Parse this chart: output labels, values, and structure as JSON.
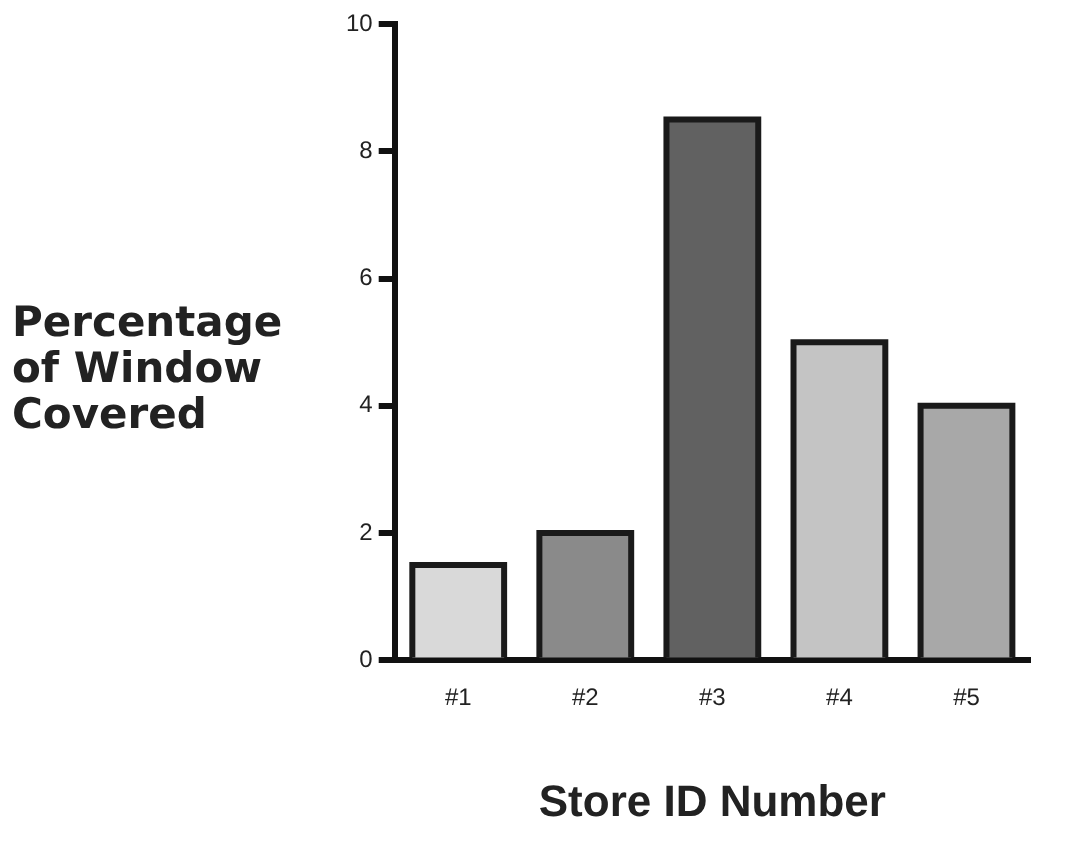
{
  "chart_data": {
    "type": "bar",
    "categories": [
      "#1",
      "#2",
      "#3",
      "#4",
      "#5"
    ],
    "values": [
      1.5,
      2.0,
      8.5,
      5.0,
      4.0
    ],
    "colors": [
      "#d9d9d9",
      "#8a8a8a",
      "#616161",
      "#c4c4c4",
      "#a8a8a8"
    ],
    "ylim": [
      0,
      10
    ],
    "yticks": [
      0,
      2,
      4,
      6,
      8,
      10
    ],
    "grid": false,
    "xlabel": "Store ID Number",
    "ylabel": "Percentage of Window Covered"
  }
}
